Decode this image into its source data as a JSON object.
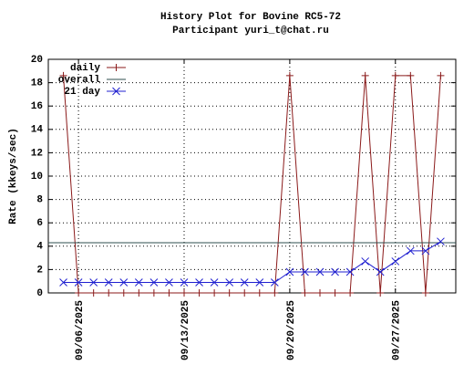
{
  "chart_data": {
    "type": "line",
    "title": "History Plot for Bovine RC5-72",
    "subtitle": "Participant yuri_t@chat.ru",
    "ylabel": "Rate (kkeys/sec)",
    "x": [
      "09/05/2025",
      "09/06/2025",
      "09/07/2025",
      "09/08/2025",
      "09/09/2025",
      "09/10/2025",
      "09/11/2025",
      "09/12/2025",
      "09/13/2025",
      "09/14/2025",
      "09/15/2025",
      "09/16/2025",
      "09/17/2025",
      "09/18/2025",
      "09/19/2025",
      "09/20/2025",
      "09/21/2025",
      "09/22/2025",
      "09/23/2025",
      "09/24/2025",
      "09/25/2025",
      "09/26/2025",
      "09/27/2025",
      "09/28/2025",
      "09/29/2025",
      "09/30/2025"
    ],
    "xlim": [
      "09/04/2025",
      "10/01/2025"
    ],
    "xticks": [
      "09/06/2025",
      "09/13/2025",
      "09/20/2025",
      "09/27/2025"
    ],
    "ylim": [
      0,
      20
    ],
    "yticks": [
      0,
      2,
      4,
      6,
      8,
      10,
      12,
      14,
      16,
      18,
      20
    ],
    "grid": true,
    "legend": "top-left",
    "series": [
      {
        "name": "daily",
        "color": "#8b1a1a",
        "marker": "+",
        "values": [
          18.6,
          0,
          0,
          0,
          0,
          0,
          0,
          0,
          0,
          0,
          0,
          0,
          0,
          0,
          0,
          18.6,
          0,
          0,
          0,
          0,
          18.6,
          0,
          18.6,
          18.6,
          0,
          18.6
        ]
      },
      {
        "name": "overall",
        "color": "#2f4f4f",
        "value": 4.3
      },
      {
        "name": "21 day",
        "color": "#2020d0",
        "marker": "x",
        "values": [
          0.9,
          0.9,
          0.9,
          0.9,
          0.9,
          0.9,
          0.9,
          0.9,
          0.9,
          0.9,
          0.9,
          0.9,
          0.9,
          0.9,
          0.9,
          1.8,
          1.8,
          1.8,
          1.8,
          1.8,
          2.7,
          1.8,
          2.7,
          3.6,
          3.6,
          4.4
        ]
      }
    ]
  }
}
